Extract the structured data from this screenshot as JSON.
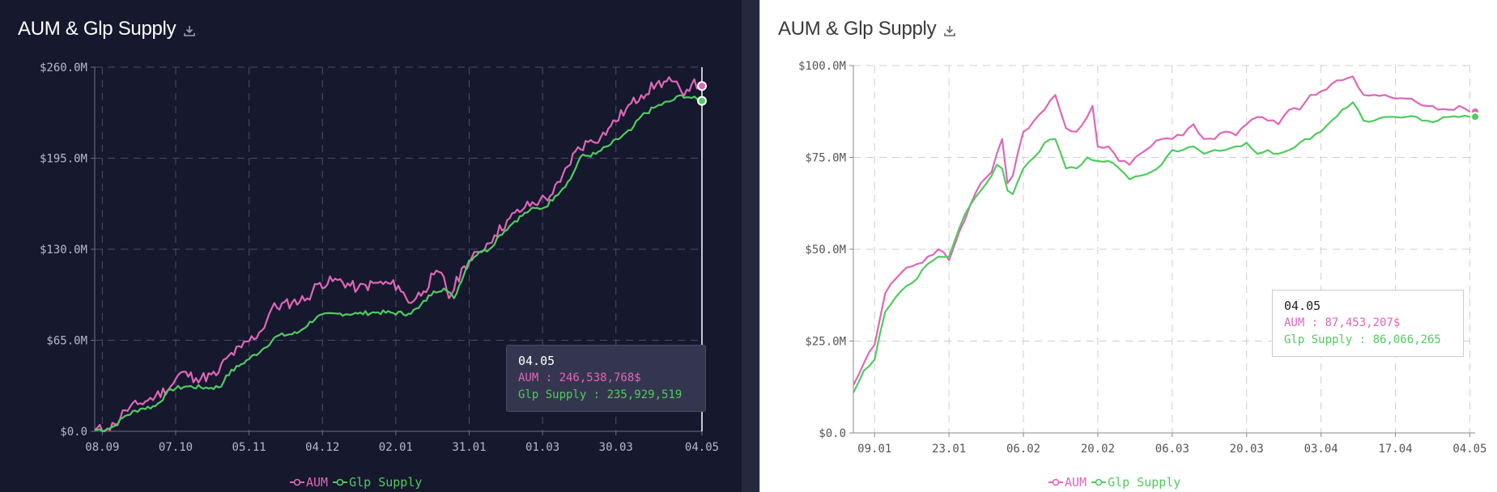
{
  "panels": [
    {
      "theme": "dark",
      "title": "AUM & Glp Supply",
      "tooltip": {
        "date": "04.05",
        "aum_label": "AUM : 246,538,768$",
        "glp_label": "Glp Supply : 235,929,519"
      },
      "legend": {
        "aum": "AUM",
        "glp": "Glp Supply"
      }
    },
    {
      "theme": "light",
      "title": "AUM & Glp Supply",
      "tooltip": {
        "date": "04.05",
        "aum_label": "AUM : 87,453,207$",
        "glp_label": "Glp Supply : 86,066,265"
      },
      "legend": {
        "aum": "AUM",
        "glp": "Glp Supply"
      }
    }
  ],
  "colors": {
    "aum": "#e066b8",
    "glp": "#4fcc5e",
    "dark_bg": "#16182e",
    "light_bg": "#ffffff"
  },
  "icons": {
    "download": "download-icon"
  },
  "chart_data": [
    {
      "type": "line",
      "title": "AUM & Glp Supply",
      "xlabel": "",
      "ylabel": "",
      "ylim": [
        0,
        260000000
      ],
      "ytick_labels": [
        "$0.0",
        "$65.0M",
        "$130.0M",
        "$195.0M",
        "$260.0M"
      ],
      "ytick_values": [
        0,
        65000000,
        130000000,
        195000000,
        260000000
      ],
      "xtick_labels": [
        "08.09",
        "07.10",
        "05.11",
        "04.12",
        "02.01",
        "31.01",
        "01.03",
        "30.03",
        "04.05"
      ],
      "xtick_index": [
        3,
        32,
        61,
        90,
        119,
        148,
        177,
        206,
        240
      ],
      "n_points": 241,
      "grid": true,
      "legend": "bottom-center",
      "series": [
        {
          "name": "AUM",
          "knots": [
            [
              0,
              1000000
            ],
            [
              5,
              2000000
            ],
            [
              8,
              5000000
            ],
            [
              12,
              15000000
            ],
            [
              18,
              20000000
            ],
            [
              24,
              25000000
            ],
            [
              30,
              32000000
            ],
            [
              34,
              42000000
            ],
            [
              40,
              38000000
            ],
            [
              48,
              40000000
            ],
            [
              52,
              52000000
            ],
            [
              58,
              60000000
            ],
            [
              66,
              72000000
            ],
            [
              70,
              88000000
            ],
            [
              78,
              92000000
            ],
            [
              84,
              95000000
            ],
            [
              88,
              105000000
            ],
            [
              96,
              108000000
            ],
            [
              104,
              102000000
            ],
            [
              112,
              106000000
            ],
            [
              120,
              104000000
            ],
            [
              124,
              92000000
            ],
            [
              130,
              100000000
            ],
            [
              134,
              112000000
            ],
            [
              138,
              110000000
            ],
            [
              140,
              95000000
            ],
            [
              146,
              118000000
            ],
            [
              152,
              128000000
            ],
            [
              158,
              140000000
            ],
            [
              164,
              152000000
            ],
            [
              170,
              160000000
            ],
            [
              176,
              165000000
            ],
            [
              180,
              168000000
            ],
            [
              184,
              178000000
            ],
            [
              190,
              200000000
            ],
            [
              196,
              208000000
            ],
            [
              200,
              210000000
            ],
            [
              204,
              218000000
            ],
            [
              210,
              230000000
            ],
            [
              216,
              240000000
            ],
            [
              222,
              248000000
            ],
            [
              228,
              250000000
            ],
            [
              232,
              242000000
            ],
            [
              236,
              248000000
            ],
            [
              240,
              246538768
            ]
          ],
          "noise": 4000000,
          "seed": 11
        },
        {
          "name": "Glp Supply",
          "knots": [
            [
              0,
              1000000
            ],
            [
              5,
              1500000
            ],
            [
              8,
              4000000
            ],
            [
              12,
              11000000
            ],
            [
              18,
              16000000
            ],
            [
              24,
              18000000
            ],
            [
              30,
              30000000
            ],
            [
              36,
              32000000
            ],
            [
              46,
              31000000
            ],
            [
              50,
              32000000
            ],
            [
              52,
              40000000
            ],
            [
              58,
              48000000
            ],
            [
              66,
              58000000
            ],
            [
              72,
              68000000
            ],
            [
              80,
              70000000
            ],
            [
              88,
              82000000
            ],
            [
              96,
              84000000
            ],
            [
              104,
              84000000
            ],
            [
              112,
              85000000
            ],
            [
              124,
              84000000
            ],
            [
              128,
              88000000
            ],
            [
              134,
              100000000
            ],
            [
              138,
              102000000
            ],
            [
              142,
              95000000
            ],
            [
              148,
              122000000
            ],
            [
              152,
              128000000
            ],
            [
              156,
              130000000
            ],
            [
              160,
              140000000
            ],
            [
              166,
              150000000
            ],
            [
              172,
              158000000
            ],
            [
              178,
              160000000
            ],
            [
              182,
              168000000
            ],
            [
              188,
              180000000
            ],
            [
              192,
              196000000
            ],
            [
              198,
              198000000
            ],
            [
              204,
              205000000
            ],
            [
              212,
              215000000
            ],
            [
              216,
              225000000
            ],
            [
              222,
              232000000
            ],
            [
              228,
              236000000
            ],
            [
              232,
              240000000
            ],
            [
              236,
              238000000
            ],
            [
              240,
              235929519
            ]
          ],
          "noise": 1600000,
          "seed": 7
        }
      ]
    },
    {
      "type": "line",
      "title": "AUM & Glp Supply",
      "xlabel": "",
      "ylabel": "",
      "ylim": [
        0,
        100000000
      ],
      "ytick_labels": [
        "$0.0",
        "$25.0M",
        "$50.0M",
        "$75.0M",
        "$100.0M"
      ],
      "ytick_values": [
        0,
        25000000,
        50000000,
        75000000,
        100000000
      ],
      "xtick_labels": [
        "09.01",
        "23.01",
        "06.02",
        "20.02",
        "06.03",
        "20.03",
        "03.04",
        "17.04",
        "04.05"
      ],
      "xtick_index": [
        4,
        18,
        32,
        46,
        60,
        74,
        88,
        102,
        116
      ],
      "n_points": 118,
      "grid": true,
      "legend": "bottom-center",
      "series": [
        {
          "name": "AUM",
          "knots": [
            [
              0,
              13000000
            ],
            [
              2,
              19000000
            ],
            [
              4,
              24000000
            ],
            [
              6,
              38000000
            ],
            [
              8,
              42000000
            ],
            [
              10,
              45000000
            ],
            [
              12,
              46000000
            ],
            [
              14,
              48000000
            ],
            [
              16,
              50000000
            ],
            [
              18,
              47000000
            ],
            [
              20,
              55000000
            ],
            [
              22,
              62000000
            ],
            [
              24,
              68000000
            ],
            [
              26,
              71000000
            ],
            [
              27,
              76000000
            ],
            [
              28,
              80000000
            ],
            [
              29,
              68000000
            ],
            [
              30,
              70000000
            ],
            [
              32,
              82000000
            ],
            [
              34,
              85000000
            ],
            [
              36,
              88000000
            ],
            [
              38,
              92000000
            ],
            [
              40,
              83000000
            ],
            [
              42,
              82000000
            ],
            [
              44,
              86000000
            ],
            [
              45,
              89000000
            ],
            [
              46,
              78000000
            ],
            [
              48,
              78000000
            ],
            [
              50,
              74000000
            ],
            [
              52,
              73000000
            ],
            [
              54,
              76000000
            ],
            [
              56,
              78000000
            ],
            [
              58,
              80000000
            ],
            [
              60,
              80000000
            ],
            [
              62,
              81000000
            ],
            [
              64,
              84000000
            ],
            [
              66,
              80000000
            ],
            [
              68,
              80000000
            ],
            [
              70,
              82000000
            ],
            [
              72,
              81000000
            ],
            [
              74,
              84000000
            ],
            [
              76,
              86000000
            ],
            [
              78,
              85000000
            ],
            [
              80,
              84000000
            ],
            [
              82,
              88000000
            ],
            [
              84,
              88000000
            ],
            [
              86,
              92000000
            ],
            [
              88,
              93000000
            ],
            [
              90,
              95000000
            ],
            [
              92,
              96000000
            ],
            [
              94,
              97000000
            ],
            [
              96,
              92000000
            ],
            [
              98,
              92000000
            ],
            [
              100,
              92000000
            ],
            [
              102,
              91000000
            ],
            [
              104,
              91000000
            ],
            [
              106,
              90000000
            ],
            [
              108,
              89000000
            ],
            [
              110,
              88000000
            ],
            [
              112,
              88000000
            ],
            [
              114,
              89000000
            ],
            [
              116,
              87453207
            ]
          ],
          "noise": 700000,
          "seed": 5
        },
        {
          "name": "Glp Supply",
          "knots": [
            [
              0,
              11000000
            ],
            [
              2,
              17000000
            ],
            [
              4,
              20000000
            ],
            [
              6,
              33000000
            ],
            [
              8,
              37000000
            ],
            [
              10,
              40000000
            ],
            [
              12,
              42000000
            ],
            [
              14,
              46000000
            ],
            [
              16,
              48000000
            ],
            [
              18,
              48000000
            ],
            [
              20,
              56000000
            ],
            [
              22,
              62000000
            ],
            [
              24,
              66000000
            ],
            [
              26,
              70000000
            ],
            [
              27,
              73000000
            ],
            [
              28,
              72000000
            ],
            [
              29,
              66000000
            ],
            [
              30,
              65000000
            ],
            [
              32,
              72000000
            ],
            [
              34,
              75000000
            ],
            [
              36,
              79000000
            ],
            [
              38,
              80000000
            ],
            [
              40,
              72000000
            ],
            [
              42,
              72000000
            ],
            [
              44,
              75000000
            ],
            [
              46,
              74000000
            ],
            [
              48,
              74000000
            ],
            [
              50,
              72000000
            ],
            [
              52,
              69000000
            ],
            [
              54,
              70000000
            ],
            [
              56,
              71000000
            ],
            [
              58,
              73000000
            ],
            [
              60,
              77000000
            ],
            [
              62,
              77000000
            ],
            [
              64,
              78000000
            ],
            [
              66,
              76000000
            ],
            [
              68,
              77000000
            ],
            [
              70,
              77000000
            ],
            [
              72,
              78000000
            ],
            [
              74,
              79000000
            ],
            [
              76,
              76000000
            ],
            [
              78,
              77000000
            ],
            [
              80,
              76000000
            ],
            [
              82,
              77000000
            ],
            [
              84,
              79000000
            ],
            [
              86,
              80000000
            ],
            [
              88,
              82000000
            ],
            [
              90,
              85000000
            ],
            [
              92,
              88000000
            ],
            [
              94,
              90000000
            ],
            [
              96,
              85000000
            ],
            [
              98,
              85000000
            ],
            [
              100,
              86000000
            ],
            [
              102,
              86000000
            ],
            [
              104,
              86000000
            ],
            [
              106,
              86000000
            ],
            [
              108,
              85000000
            ],
            [
              110,
              85000000
            ],
            [
              112,
              86000000
            ],
            [
              114,
              86000000
            ],
            [
              116,
              86066265
            ]
          ],
          "noise": 500000,
          "seed": 3
        }
      ]
    }
  ]
}
